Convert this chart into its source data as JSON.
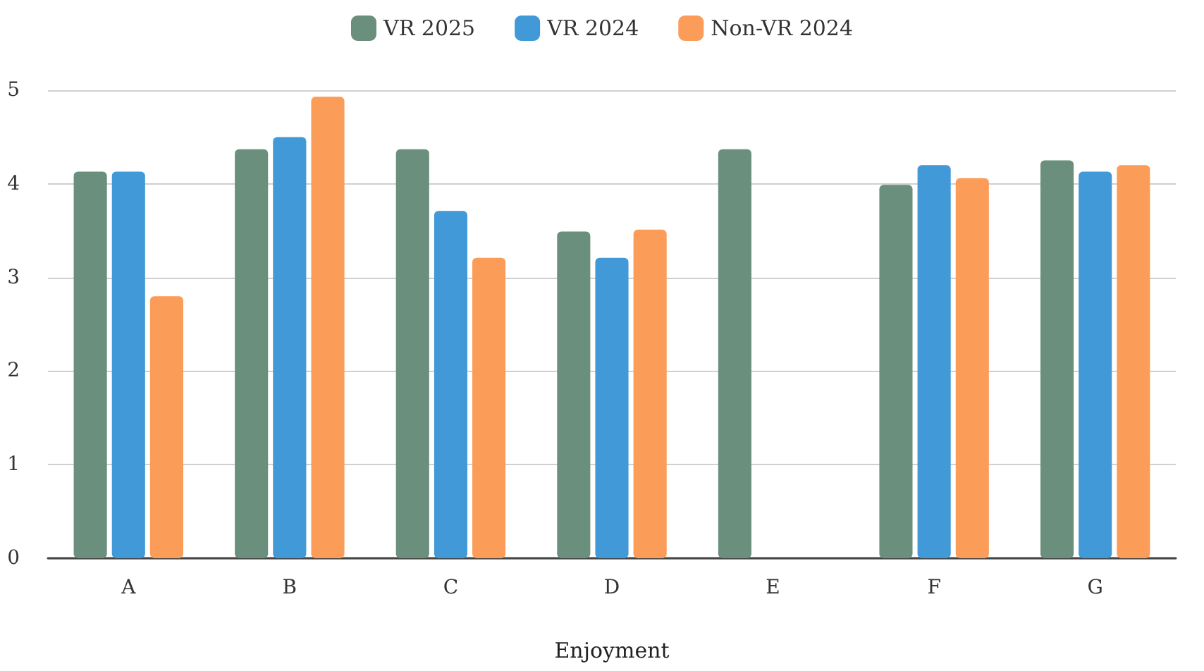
{
  "chart_data": {
    "type": "bar",
    "xlabel": "Enjoyment",
    "categories": [
      "A",
      "B",
      "C",
      "D",
      "E",
      "F",
      "G"
    ],
    "series": [
      {
        "name": "VR 2025",
        "color": "#6b8f7d",
        "values": [
          4.13,
          4.37,
          4.37,
          3.49,
          4.37,
          3.99,
          4.25
        ]
      },
      {
        "name": "VR 2024",
        "color": "#4299d8",
        "values": [
          4.13,
          4.5,
          3.71,
          3.21,
          null,
          4.2,
          4.13
        ]
      },
      {
        "name": "Non-VR 2024",
        "color": "#fb9d59",
        "values": [
          2.8,
          4.93,
          3.21,
          3.51,
          null,
          4.06,
          4.2
        ]
      }
    ],
    "ylim": [
      0,
      5
    ],
    "yticks": [
      0,
      1,
      2,
      3,
      4,
      5
    ],
    "grid": "y",
    "legend": "top"
  }
}
